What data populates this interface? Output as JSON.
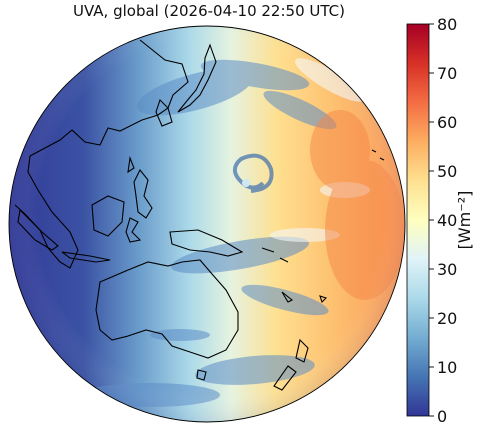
{
  "title": "UVA, global (2026-04-10 22:50 UTC)",
  "colorbar": {
    "label": "[Wm⁻²]",
    "ticks": [
      "0",
      "10",
      "20",
      "30",
      "40",
      "50",
      "60",
      "70",
      "80"
    ],
    "colors": [
      "#313695",
      "#4575b4",
      "#74add1",
      "#abd9e9",
      "#e0f3f8",
      "#ffffbf",
      "#fee090",
      "#fdae61",
      "#f46d43",
      "#d73027",
      "#a50026"
    ]
  },
  "map": {
    "projection": "orthographic",
    "features": [
      "Asia",
      "Japan",
      "Philippines",
      "Indonesia",
      "Papua New Guinea",
      "Australia",
      "New Zealand",
      "Pacific Islands"
    ]
  }
}
